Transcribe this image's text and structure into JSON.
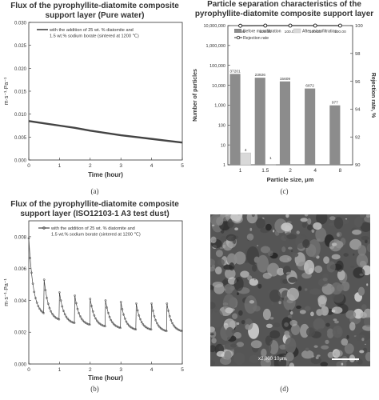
{
  "chart_data": [
    {
      "type": "line",
      "title": "Flux of the pyrophyllite-diatomite composite support layer (Pure water)",
      "xlabel": "Time (hour)",
      "ylabel": "m·s⁻¹·Pa⁻¹",
      "xlim": [
        0,
        5
      ],
      "ylim": [
        0,
        0.03
      ],
      "xticks": [
        "0",
        "1",
        "2",
        "3",
        "4",
        "5"
      ],
      "yticks": [
        "0.000",
        "0.005",
        "0.010",
        "0.015",
        "0.020",
        "0.025",
        "0.030"
      ],
      "legend_placement": "top-left",
      "series": [
        {
          "name": "with the addition of 25 wt. % diatomite and 1.5 wt.% sodium borate (sintered at 1200 ℃)",
          "x": [
            0,
            0.5,
            1,
            1.5,
            2,
            2.5,
            3,
            3.5,
            4,
            4.5,
            5
          ],
          "y": [
            0.0085,
            0.008,
            0.0075,
            0.007,
            0.0064,
            0.0059,
            0.0054,
            0.005,
            0.0046,
            0.0042,
            0.0038
          ]
        }
      ],
      "caption": "(a)"
    },
    {
      "type": "bar",
      "title": "Particle separation characteristics of the pyrophyllite-diatomite composite support layer",
      "xlabel": "Particle size, μm",
      "ylabel": "Number of particles",
      "ylabel_right": "Rejection rate, %",
      "categories": [
        "1",
        "1.5",
        "2",
        "4",
        "8"
      ],
      "y_scale": "log",
      "ylim": [
        1,
        10000000
      ],
      "yticks": [
        "1",
        "10",
        "100",
        "1,000",
        "10,000",
        "100,000",
        "1,000,000",
        "10,000,000"
      ],
      "y2lim": [
        90,
        100
      ],
      "y2ticks": [
        "90",
        "92",
        "94",
        "96",
        "98",
        "100"
      ],
      "legend_placement": "top",
      "series": [
        {
          "name": "Before microfiltration",
          "values": [
            37201,
            23926,
            15609,
            6872,
            977
          ],
          "labels": [
            "37201",
            "23926",
            "15609",
            "6872",
            "977"
          ]
        },
        {
          "name": "After microfiltration",
          "values": [
            4,
            1,
            0,
            0,
            0
          ],
          "labels": [
            "4",
            "1",
            "",
            "",
            ""
          ]
        },
        {
          "name": "Rejection rate",
          "values": [
            99.99,
            100.0,
            100.0,
            100.0,
            100.0
          ],
          "labels": [
            "99.99",
            "100.00",
            "100.00",
            "100.00",
            "100.00"
          ]
        }
      ],
      "caption": "(c)"
    },
    {
      "type": "line",
      "title": "Flux of the pyrophyllite-diatomite composite support layer (ISO12103-1 A3 test dust)",
      "xlabel": "Time (hour)",
      "ylabel": "m·s⁻¹·Pa⁻¹",
      "xlim": [
        0,
        5
      ],
      "ylim": [
        0,
        0.009
      ],
      "xticks": [
        "0",
        "1",
        "2",
        "3",
        "4",
        "5"
      ],
      "yticks": [
        "0.000",
        "0.002",
        "0.004",
        "0.006",
        "0.008"
      ],
      "legend_placement": "top-left",
      "series": [
        {
          "name": "with the addition of 25 wt. % diatomite and 1.5 wt.% sodium borate (sintered at 1200 ℃)",
          "cycles": [
            {
              "start": 0.0,
              "end": 0.5,
              "peak": 0.0079,
              "trough": 0.003
            },
            {
              "start": 0.5,
              "end": 1.0,
              "peak": 0.0053,
              "trough": 0.0027
            },
            {
              "start": 1.0,
              "end": 1.5,
              "peak": 0.0045,
              "trough": 0.0025
            },
            {
              "start": 1.5,
              "end": 2.0,
              "peak": 0.0043,
              "trough": 0.0024
            },
            {
              "start": 2.0,
              "end": 2.5,
              "peak": 0.0041,
              "trough": 0.0023
            },
            {
              "start": 2.5,
              "end": 3.0,
              "peak": 0.004,
              "trough": 0.0022
            },
            {
              "start": 3.0,
              "end": 3.5,
              "peak": 0.0039,
              "trough": 0.0021
            },
            {
              "start": 3.5,
              "end": 4.0,
              "peak": 0.0038,
              "trough": 0.0021
            },
            {
              "start": 4.0,
              "end": 4.5,
              "peak": 0.0038,
              "trough": 0.002
            },
            {
              "start": 4.5,
              "end": 5.0,
              "peak": 0.0038,
              "trough": 0.002
            }
          ]
        }
      ],
      "caption": "(b)"
    }
  ],
  "micrograph": {
    "label": "x2,000  10μm",
    "caption": "(d)"
  },
  "colors": {
    "line": "#444444",
    "bar_before": "#8c8c8c",
    "bar_after": "#d9d9d9",
    "rejection": "#000000"
  }
}
